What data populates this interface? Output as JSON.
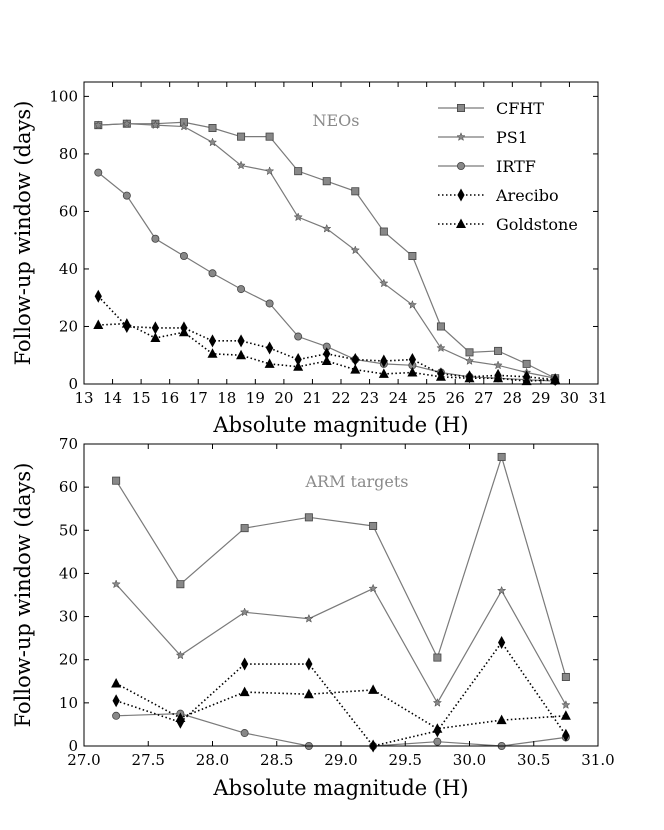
{
  "chart_data": [
    {
      "type": "line",
      "annotation": "NEOs",
      "xlabel": "Absolute magnitude (H)",
      "ylabel": "Follow-up window (days)",
      "xlim": [
        13,
        31
      ],
      "ylim": [
        0,
        105
      ],
      "xticks": [
        13,
        14,
        15,
        16,
        17,
        18,
        19,
        20,
        21,
        22,
        23,
        24,
        25,
        26,
        27,
        28,
        29,
        30,
        31
      ],
      "yticks": [
        0,
        20,
        40,
        60,
        80,
        100
      ],
      "x": [
        13.5,
        14.5,
        15.5,
        16.5,
        17.5,
        18.5,
        19.5,
        20.5,
        21.5,
        22.5,
        23.5,
        24.5,
        25.5,
        26.5,
        27.5,
        28.5,
        29.5
      ],
      "legend": "top-right",
      "series": [
        {
          "name": "CFHT",
          "marker": "square",
          "line": "solid",
          "color": "#7a7a7a",
          "values": [
            90,
            90.5,
            90.5,
            91,
            89,
            86,
            86,
            74,
            70.5,
            67,
            53,
            44.5,
            20,
            11,
            11.5,
            7,
            2
          ]
        },
        {
          "name": "PS1",
          "marker": "star",
          "line": "solid",
          "color": "#7a7a7a",
          "values": [
            90,
            90.5,
            90,
            89.5,
            84,
            76,
            74,
            58,
            54,
            46.5,
            35,
            27.5,
            12.5,
            8,
            6.5,
            4,
            2
          ]
        },
        {
          "name": "IRTF",
          "marker": "circle",
          "line": "solid",
          "color": "#7a7a7a",
          "values": [
            73.5,
            65.5,
            50.5,
            44.5,
            38.5,
            33,
            28,
            16.5,
            13,
            8.5,
            7,
            6.5,
            4,
            2.5,
            2,
            1.5,
            1
          ]
        },
        {
          "name": "Arecibo",
          "marker": "diamond",
          "line": "dotted",
          "color": "#000000",
          "values": [
            30.5,
            20,
            19.5,
            19.5,
            15,
            15,
            12.5,
            8.5,
            10.5,
            8.5,
            8,
            8.5,
            3.5,
            2.5,
            3,
            2.5,
            1.5
          ]
        },
        {
          "name": "Goldstone",
          "marker": "triangle",
          "line": "dotted",
          "color": "#000000",
          "values": [
            20.5,
            21,
            16,
            18,
            10.5,
            10,
            7,
            6,
            8,
            5,
            3.5,
            4,
            2.5,
            2,
            2,
            1,
            1.5
          ]
        }
      ]
    },
    {
      "type": "line",
      "annotation": "ARM targets",
      "xlabel": "Absolute magnitude (H)",
      "ylabel": "Follow-up window (days)",
      "xlim": [
        27.0,
        31.0
      ],
      "ylim": [
        0,
        70
      ],
      "xticks": [
        "27.0",
        "27.5",
        "28.0",
        "28.5",
        "29.0",
        "29.5",
        "30.0",
        "30.5",
        "31.0"
      ],
      "yticks": [
        0,
        10,
        20,
        30,
        40,
        50,
        60,
        70
      ],
      "x": [
        27.25,
        27.75,
        28.25,
        28.75,
        29.25,
        29.75,
        30.25,
        30.75
      ],
      "series": [
        {
          "name": "CFHT",
          "marker": "square",
          "line": "solid",
          "color": "#7a7a7a",
          "values": [
            61.5,
            37.5,
            50.5,
            53,
            51,
            20.5,
            67,
            16
          ]
        },
        {
          "name": "PS1",
          "marker": "star",
          "line": "solid",
          "color": "#7a7a7a",
          "values": [
            37.5,
            21,
            31,
            29.5,
            36.5,
            10,
            36,
            9.5
          ]
        },
        {
          "name": "IRTF",
          "marker": "circle",
          "line": "solid",
          "color": "#7a7a7a",
          "values": [
            7,
            7.5,
            3,
            0,
            0,
            1,
            0,
            2
          ]
        },
        {
          "name": "Arecibo",
          "marker": "diamond",
          "line": "dotted",
          "color": "#000000",
          "values": [
            10.5,
            5.5,
            19,
            19,
            0,
            3.5,
            24,
            2.5
          ]
        },
        {
          "name": "Goldstone",
          "marker": "triangle",
          "line": "dotted",
          "color": "#000000",
          "values": [
            14.5,
            6.5,
            12.5,
            12,
            13,
            4,
            6,
            7
          ]
        }
      ]
    }
  ]
}
